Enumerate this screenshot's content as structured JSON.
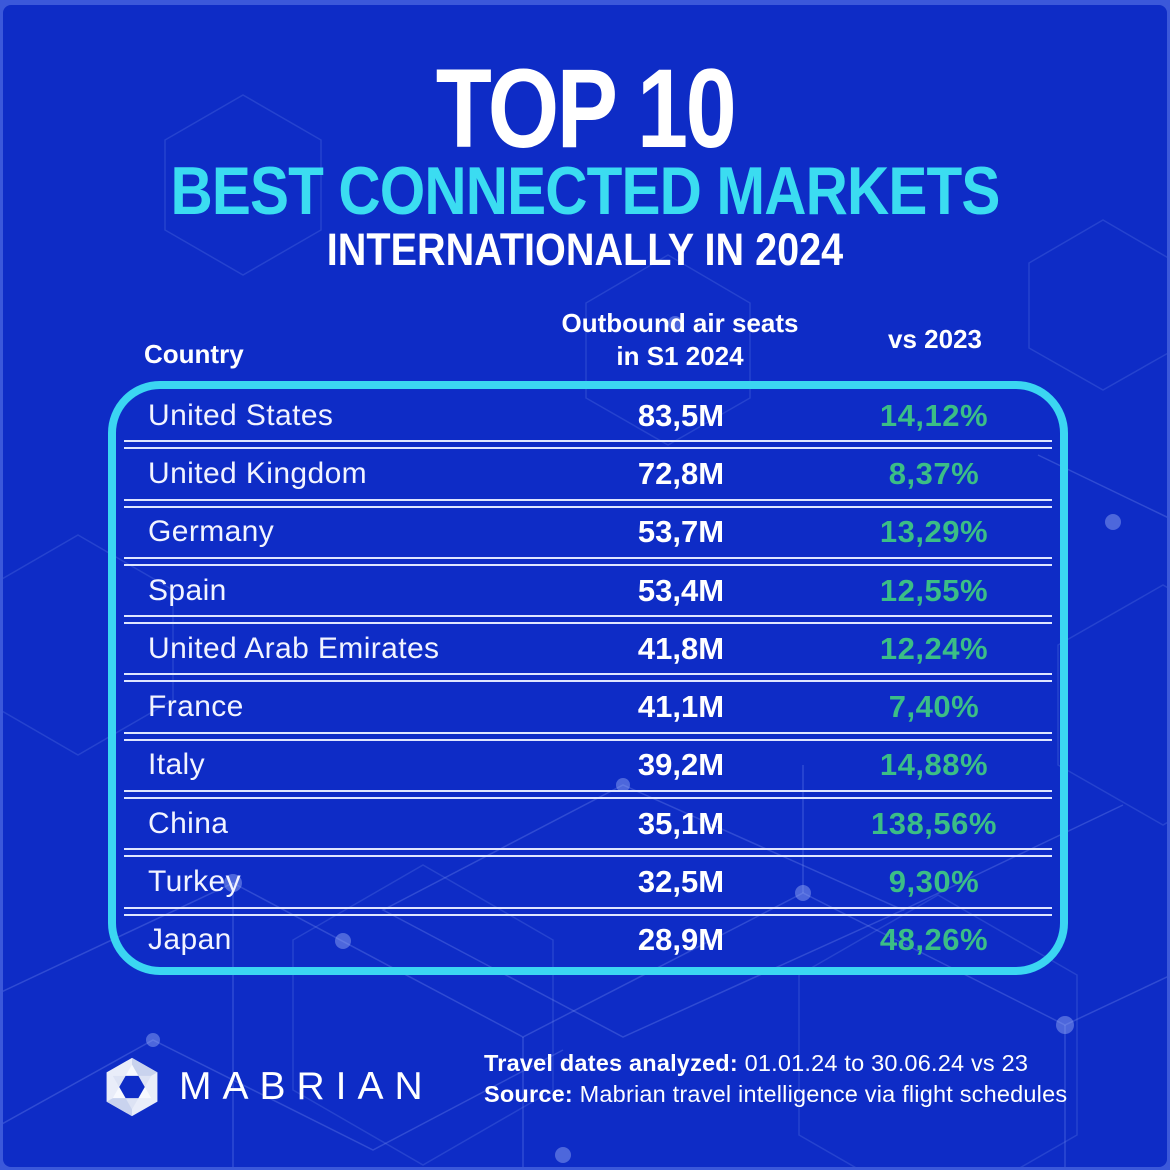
{
  "header": {
    "title_line1": "TOP 10",
    "title_line2": "BEST CONNECTED MARKETS",
    "title_line3": "INTERNATIONALLY IN 2024"
  },
  "table": {
    "headers": {
      "country": "Country",
      "seats_line1": "Outbound air seats",
      "seats_line2": "in S1 2024",
      "vs": "vs 2023"
    },
    "rows": [
      {
        "country": "United States",
        "seats": "83,5M",
        "change": "14,12%"
      },
      {
        "country": "United Kingdom",
        "seats": "72,8M",
        "change": "8,37%"
      },
      {
        "country": "Germany",
        "seats": "53,7M",
        "change": "13,29%"
      },
      {
        "country": "Spain",
        "seats": "53,4M",
        "change": "12,55%"
      },
      {
        "country": "United Arab Emirates",
        "seats": "41,8M",
        "change": "12,24%"
      },
      {
        "country": "France",
        "seats": "41,1M",
        "change": "7,40%"
      },
      {
        "country": "Italy",
        "seats": "39,2M",
        "change": "14,88%"
      },
      {
        "country": "China",
        "seats": "35,1M",
        "change": "138,56%"
      },
      {
        "country": "Turkey",
        "seats": "32,5M",
        "change": "9,30%"
      },
      {
        "country": "Japan",
        "seats": "28,9M",
        "change": "48,26%"
      }
    ]
  },
  "footer": {
    "brand": "MABRIAN",
    "dates_label": "Travel dates analyzed:",
    "dates_value": " 01.01.24 to 30.06.24 vs 23",
    "source_label": "Source:",
    "source_value": " Mabrian travel intelligence via flight schedules"
  },
  "colors": {
    "bg": "#0E2CC6",
    "frame": "#3B58DA",
    "cyan": "#3BDCF1",
    "tborder": "#3BD6F2",
    "green": "#3BBE86",
    "divider": "#DFE6FF",
    "text": "#FFFFFF"
  },
  "chart_data": {
    "type": "table",
    "title": "TOP 10 Best Connected Markets Internationally in 2024",
    "columns": [
      "Country",
      "Outbound air seats in S1 2024",
      "vs 2023"
    ],
    "categories": [
      "United States",
      "United Kingdom",
      "Germany",
      "Spain",
      "United Arab Emirates",
      "France",
      "Italy",
      "China",
      "Turkey",
      "Japan"
    ],
    "series": [
      {
        "name": "Outbound air seats in S1 2024 (millions)",
        "values": [
          83.5,
          72.8,
          53.7,
          53.4,
          41.8,
          41.1,
          39.2,
          35.1,
          32.5,
          28.9
        ]
      },
      {
        "name": "vs 2023 (% change)",
        "values": [
          14.12,
          8.37,
          13.29,
          12.55,
          12.24,
          7.4,
          14.88,
          138.56,
          9.3,
          48.26
        ]
      }
    ],
    "notes": "Travel dates analyzed: 01.01.24 to 30.06.24 vs 23. Source: Mabrian travel intelligence via flight schedules."
  }
}
